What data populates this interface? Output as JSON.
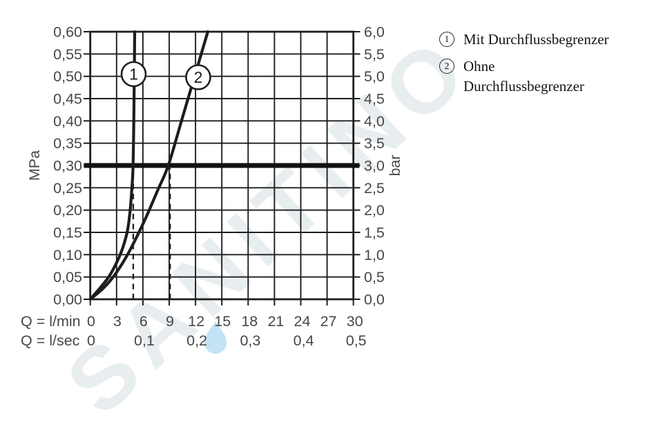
{
  "watermark": {
    "text": "SANITINO"
  },
  "legend": {
    "item1": {
      "num": "1",
      "label": "Mit Durchflussbegrenzer"
    },
    "item2": {
      "num": "2",
      "line1": "Ohne",
      "line2": "Durchflussbegrenzer"
    }
  },
  "chart_data": {
    "type": "line",
    "title": "",
    "axis_labels": {
      "left_unit": "MPa",
      "right_unit": "bar",
      "x_row1": "Q = l/min",
      "x_row2": "Q = l/sec"
    },
    "xlim_lmin": [
      0,
      30
    ],
    "ylim_mpa": [
      0,
      0.6
    ],
    "ylim_bar": [
      0,
      6.0
    ],
    "grid": true,
    "x_ticks_lmin": [
      "0",
      "3",
      "6",
      "9",
      "12",
      "15",
      "18",
      "21",
      "24",
      "27",
      "30"
    ],
    "x_ticks_lsec": [
      "0",
      "0,1",
      "0,2",
      "0,3",
      "0,4",
      "0,5"
    ],
    "y_ticks_mpa": [
      "0,60",
      "0,55",
      "0,50",
      "0,45",
      "0,40",
      "0,35",
      "0,30",
      "0,25",
      "0,20",
      "0,15",
      "0,10",
      "0,05",
      "0,00"
    ],
    "y_ticks_bar": [
      "6,0",
      "5,5",
      "5,0",
      "4,5",
      "4,0",
      "3,5",
      "3,0",
      "2,5",
      "2,0",
      "1,5",
      "1,0",
      "0,5",
      "0,0"
    ],
    "reference_line_mpa": 0.3,
    "dashed_guides_lmin": [
      4.9,
      9.1
    ],
    "series": [
      {
        "name": "1",
        "label": "Mit Durchflussbegrenzer",
        "points_lmin_mpa": [
          [
            0,
            0
          ],
          [
            1.1,
            0.025
          ],
          [
            2.1,
            0.05
          ],
          [
            3.0,
            0.082
          ],
          [
            3.7,
            0.115
          ],
          [
            4.25,
            0.155
          ],
          [
            4.55,
            0.2
          ],
          [
            4.75,
            0.25
          ],
          [
            4.88,
            0.3
          ],
          [
            4.98,
            0.42
          ],
          [
            5.03,
            0.52
          ],
          [
            5.06,
            0.6
          ]
        ]
      },
      {
        "name": "2",
        "label": "Ohne Durchflussbegrenzer",
        "points_lmin_mpa": [
          [
            0,
            0
          ],
          [
            1.5,
            0.025
          ],
          [
            2.8,
            0.055
          ],
          [
            4.1,
            0.095
          ],
          [
            5.3,
            0.14
          ],
          [
            6.5,
            0.19
          ],
          [
            7.7,
            0.245
          ],
          [
            8.9,
            0.3
          ],
          [
            10.4,
            0.4
          ],
          [
            11.9,
            0.5
          ],
          [
            13.4,
            0.6
          ]
        ]
      }
    ]
  }
}
